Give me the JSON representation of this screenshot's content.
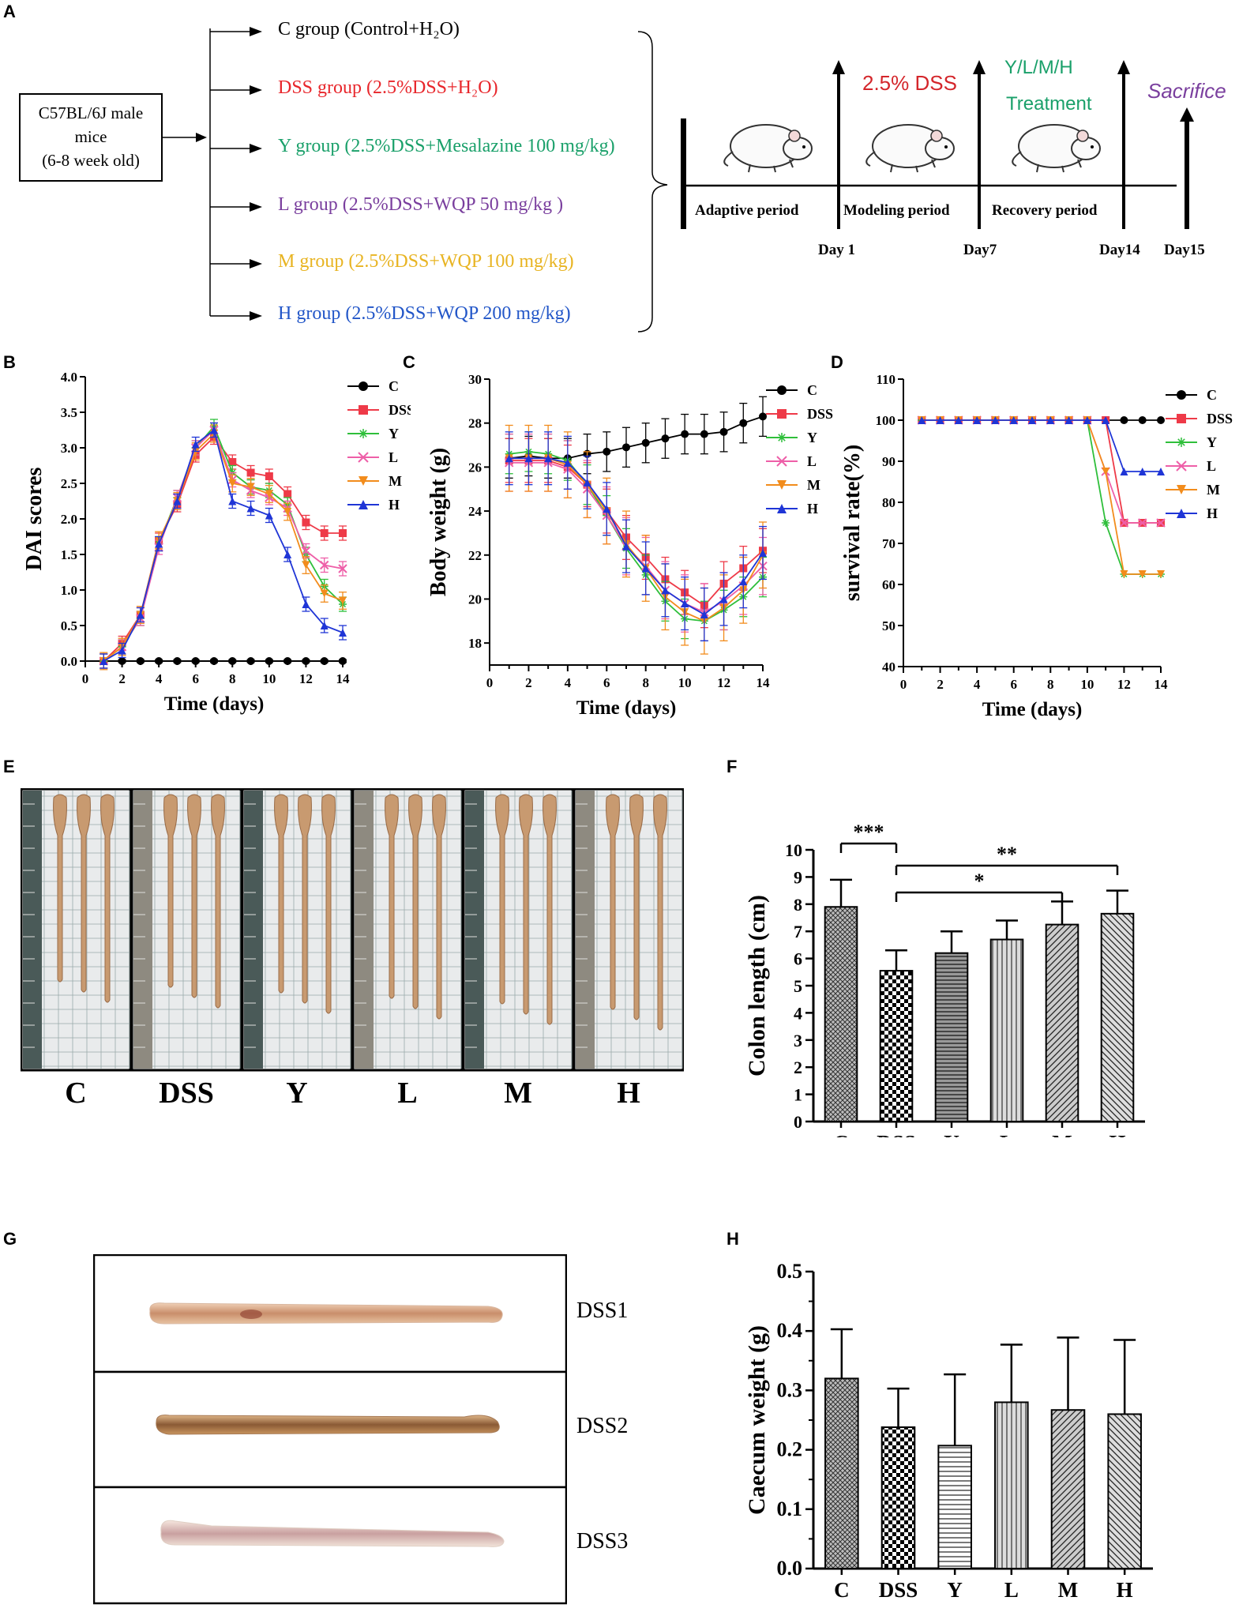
{
  "panels": {
    "a": {
      "letter": "A",
      "mice_box": [
        "C57BL/6J male",
        "mice",
        "(6-8 week old)"
      ],
      "groups": [
        {
          "label": "C group (Control+H₂O)",
          "color": "#000000"
        },
        {
          "label": "DSS group (2.5%DSS+H₂O)",
          "color": "#e8262b"
        },
        {
          "label": "Y group (2.5%DSS+Mesalazine 100 mg/kg)",
          "color": "#1aa06a"
        },
        {
          "label": "L group (2.5%DSS+WQP 50 mg/kg )",
          "color": "#7a3f9e"
        },
        {
          "label": "M group (2.5%DSS+WQP 100 mg/kg)",
          "color": "#e8b422"
        },
        {
          "label": "H group  (2.5%DSS+WQP 200 mg/kg)",
          "color": "#2256c8"
        }
      ],
      "timeline": {
        "periods": [
          "Adaptive period",
          "Modeling period",
          "Recovery period"
        ],
        "days": [
          "Day 1",
          "Day7",
          "Day14",
          "Day15"
        ],
        "dss_label": "2.5% DSS",
        "treatment_label": [
          "Y/L/M/H",
          "Treatment"
        ],
        "sacrifice_label": "Sacrifice",
        "dss_color": "#d4262b",
        "treatment_color": "#1aa06a",
        "sacrifice_color": "#7a3f9e"
      }
    },
    "b": {
      "letter": "B"
    },
    "c": {
      "letter": "C"
    },
    "d": {
      "letter": "D"
    },
    "e": {
      "letter": "E",
      "labels": [
        "C",
        "DSS",
        "Y",
        "L",
        "M",
        "H"
      ]
    },
    "f": {
      "letter": "F"
    },
    "g": {
      "letter": "G",
      "labels": [
        "DSS1",
        "DSS2",
        "DSS3"
      ]
    },
    "h": {
      "letter": "H"
    }
  },
  "series_colors": {
    "C": "#000000",
    "DSS": "#ee3a48",
    "Y": "#2fbf3b",
    "L": "#ee5fa8",
    "M": "#f28c1c",
    "H": "#1f35d6"
  },
  "chart_data": [
    {
      "id": "B",
      "type": "line",
      "xlabel": "Time (days)",
      "ylabel": "DAI scores",
      "xlim": [
        0,
        14
      ],
      "ylim": [
        0,
        4.0
      ],
      "xticks": [
        "0",
        "2",
        "4",
        "6",
        "8",
        "10",
        "12",
        "14"
      ],
      "yticks": [
        "0.0",
        "0.5",
        "1.0",
        "1.5",
        "2.0",
        "2.5",
        "3.0",
        "3.5",
        "4.0"
      ],
      "x": [
        1,
        2,
        3,
        4,
        5,
        6,
        7,
        8,
        9,
        10,
        11,
        12,
        13,
        14
      ],
      "series": [
        {
          "name": "C",
          "values": [
            0,
            0,
            0,
            0,
            0,
            0,
            0,
            0,
            0,
            0,
            0,
            0,
            0,
            0
          ],
          "err": 0.02
        },
        {
          "name": "DSS",
          "values": [
            0,
            0.25,
            0.65,
            1.7,
            2.2,
            2.9,
            3.15,
            2.8,
            2.65,
            2.6,
            2.35,
            1.95,
            1.8,
            1.8
          ],
          "err": 0.1
        },
        {
          "name": "Y",
          "values": [
            0,
            0.2,
            0.6,
            1.65,
            2.3,
            3.0,
            3.3,
            2.65,
            2.45,
            2.4,
            2.2,
            1.5,
            1.05,
            0.8
          ],
          "err": 0.1
        },
        {
          "name": "L",
          "values": [
            0,
            0.2,
            0.6,
            1.6,
            2.3,
            3.0,
            3.25,
            2.55,
            2.4,
            2.3,
            2.15,
            1.55,
            1.35,
            1.3
          ],
          "err": 0.1
        },
        {
          "name": "M",
          "values": [
            0,
            0.2,
            0.65,
            1.7,
            2.25,
            2.95,
            3.2,
            2.5,
            2.45,
            2.35,
            2.1,
            1.35,
            0.95,
            0.85
          ],
          "err": 0.12
        },
        {
          "name": "H",
          "values": [
            0,
            0.15,
            0.65,
            1.65,
            2.25,
            3.05,
            3.25,
            2.25,
            2.15,
            2.05,
            1.5,
            0.8,
            0.5,
            0.4
          ],
          "err": 0.1
        }
      ]
    },
    {
      "id": "C",
      "type": "line",
      "xlabel": "Time (days)",
      "ylabel": "Body weight (g)",
      "xlim": [
        0,
        14
      ],
      "ylim": [
        17,
        30
      ],
      "xticks": [
        "0",
        "2",
        "4",
        "6",
        "8",
        "10",
        "12",
        "14"
      ],
      "yticks": [
        "18",
        "20",
        "22",
        "24",
        "26",
        "28",
        "30"
      ],
      "x": [
        1,
        2,
        3,
        4,
        5,
        6,
        7,
        8,
        9,
        10,
        11,
        12,
        13,
        14
      ],
      "series": [
        {
          "name": "C",
          "values": [
            26.4,
            26.5,
            26.4,
            26.4,
            26.6,
            26.7,
            26.9,
            27.1,
            27.3,
            27.5,
            27.5,
            27.6,
            28.0,
            28.3
          ],
          "err": 0.9
        },
        {
          "name": "DSS",
          "values": [
            26.3,
            26.3,
            26.3,
            26.0,
            25.2,
            24.0,
            22.8,
            21.9,
            20.9,
            20.3,
            19.7,
            20.7,
            21.4,
            22.2
          ],
          "err": 1.0
        },
        {
          "name": "Y",
          "values": [
            26.6,
            26.7,
            26.6,
            26.3,
            25.2,
            23.8,
            22.3,
            21.1,
            19.9,
            19.1,
            19.0,
            19.5,
            20.1,
            21.0
          ],
          "err": 0.9
        },
        {
          "name": "L",
          "values": [
            26.2,
            26.2,
            26.2,
            25.9,
            25.0,
            23.8,
            22.4,
            21.5,
            20.4,
            19.8,
            19.4,
            19.9,
            20.6,
            21.5
          ],
          "err": 1.3
        },
        {
          "name": "M",
          "values": [
            26.4,
            26.4,
            26.4,
            26.1,
            25.2,
            24.0,
            22.5,
            21.4,
            20.1,
            19.4,
            19.0,
            19.6,
            20.4,
            22.0
          ],
          "err": 1.5
        },
        {
          "name": "H",
          "values": [
            26.4,
            26.4,
            26.4,
            26.2,
            25.3,
            24.1,
            22.4,
            21.4,
            20.4,
            19.8,
            19.3,
            20.0,
            20.8,
            22.1
          ],
          "err": 1.2
        }
      ]
    },
    {
      "id": "D",
      "type": "line",
      "xlabel": "Time (days)",
      "ylabel": "survival rate(%)",
      "xlim": [
        0,
        14
      ],
      "ylim": [
        40,
        110
      ],
      "xticks": [
        "0",
        "2",
        "4",
        "6",
        "8",
        "10",
        "12",
        "14"
      ],
      "yticks": [
        "40",
        "50",
        "60",
        "70",
        "80",
        "90",
        "100",
        "110"
      ],
      "x": [
        1,
        2,
        3,
        4,
        5,
        6,
        7,
        8,
        9,
        10,
        11,
        12,
        13,
        14
      ],
      "series": [
        {
          "name": "C",
          "values": [
            100,
            100,
            100,
            100,
            100,
            100,
            100,
            100,
            100,
            100,
            100,
            100,
            100,
            100
          ]
        },
        {
          "name": "DSS",
          "values": [
            100,
            100,
            100,
            100,
            100,
            100,
            100,
            100,
            100,
            100,
            100,
            75,
            75,
            75
          ]
        },
        {
          "name": "Y",
          "values": [
            100,
            100,
            100,
            100,
            100,
            100,
            100,
            100,
            100,
            100,
            75,
            62.5,
            62.5,
            62.5
          ]
        },
        {
          "name": "L",
          "values": [
            100,
            100,
            100,
            100,
            100,
            100,
            100,
            100,
            100,
            100,
            87.5,
            75,
            75,
            75
          ]
        },
        {
          "name": "M",
          "values": [
            100,
            100,
            100,
            100,
            100,
            100,
            100,
            100,
            100,
            100,
            87.5,
            62.5,
            62.5,
            62.5
          ]
        },
        {
          "name": "H",
          "values": [
            100,
            100,
            100,
            100,
            100,
            100,
            100,
            100,
            100,
            100,
            100,
            87.5,
            87.5,
            87.5
          ]
        }
      ]
    },
    {
      "id": "F",
      "type": "bar",
      "xlabel": "",
      "ylabel": "Colon length (cm)",
      "ylim": [
        0,
        10
      ],
      "yticks": [
        "0",
        "1",
        "2",
        "3",
        "4",
        "5",
        "6",
        "7",
        "8",
        "9",
        "10"
      ],
      "categories": [
        "C",
        "DSS",
        "Y",
        "L",
        "M",
        "H"
      ],
      "values": [
        7.9,
        5.55,
        6.2,
        6.7,
        7.25,
        7.65
      ],
      "errors": [
        1.0,
        0.75,
        0.8,
        0.7,
        0.85,
        0.85
      ],
      "significance": [
        {
          "from": 0,
          "to": 1,
          "label": "***"
        },
        {
          "from": 1,
          "to": 5,
          "label": "**"
        },
        {
          "from": 1,
          "to": 4,
          "label": "*"
        }
      ]
    },
    {
      "id": "H",
      "type": "bar",
      "xlabel": "",
      "ylabel": "Caecum weight (g)",
      "ylim": [
        0,
        0.5
      ],
      "yticks": [
        "0.0",
        "0.1",
        "0.2",
        "0.3",
        "0.4",
        "0.5"
      ],
      "categories": [
        "C",
        "DSS",
        "Y",
        "L",
        "M",
        "H"
      ],
      "values": [
        0.32,
        0.238,
        0.207,
        0.28,
        0.267,
        0.26
      ],
      "errors": [
        0.083,
        0.065,
        0.12,
        0.097,
        0.122,
        0.125
      ]
    }
  ]
}
